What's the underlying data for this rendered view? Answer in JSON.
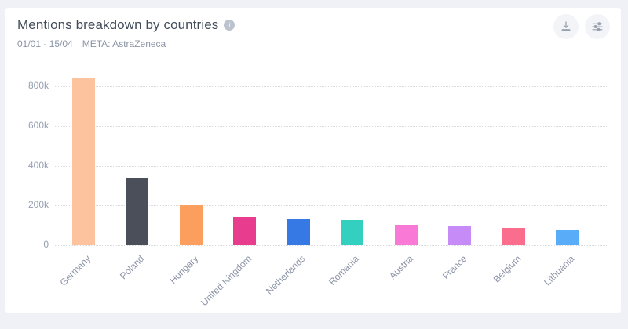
{
  "header": {
    "title": "Mentions breakdown by countries",
    "info_icon": "i",
    "date_range": "01/01 - 15/04",
    "meta": "META: AstraZeneca"
  },
  "toolbar": {
    "download_icon": "download",
    "settings_icon": "sliders"
  },
  "chart_data": {
    "type": "bar",
    "title": "Mentions breakdown by countries",
    "categories": [
      "Germany",
      "Poland",
      "Hungary",
      "United Kingdom",
      "Netherlands",
      "Romania",
      "Austria",
      "France",
      "Belgium",
      "Lithuania"
    ],
    "values": [
      840000,
      340000,
      200000,
      140000,
      132000,
      125000,
      102000,
      93000,
      87000,
      78000
    ],
    "colors": [
      "#FDC39E",
      "#4A4F5A",
      "#FC9E5E",
      "#E83C8E",
      "#3678E4",
      "#33D0C0",
      "#F97AD6",
      "#C68BF7",
      "#FA6D8D",
      "#58ACF8"
    ],
    "yticks": [
      {
        "value": 0,
        "label": "0"
      },
      {
        "value": 200000,
        "label": "200k"
      },
      {
        "value": 400000,
        "label": "400k"
      },
      {
        "value": 600000,
        "label": "600k"
      },
      {
        "value": 800000,
        "label": "800k"
      }
    ],
    "ylim": [
      0,
      860000
    ],
    "xlabel": "",
    "ylabel": "",
    "grid": "horizontal-dotted",
    "legend": "none"
  },
  "colors": {
    "page_bg": "#F0F1F6",
    "card_bg": "#FFFFFF",
    "title": "#414B5A",
    "subtitle": "#8B94A6",
    "axis_label": "#97A0B3",
    "gridline": "#D9DBE1",
    "button_bg": "#F3F4F8",
    "icon": "#98A0AF"
  }
}
